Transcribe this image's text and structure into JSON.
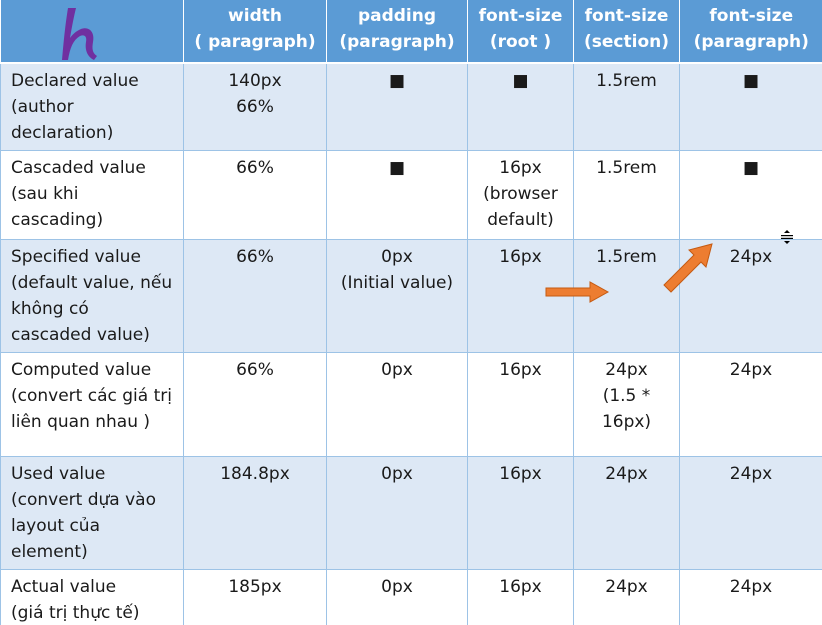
{
  "header": {
    "col1": "width\n( paragraph)",
    "col2": "padding\n(paragraph)",
    "col3": "font-size\n(root )",
    "col4": "font-size\n(section)",
    "col5": "font-size\n(paragraph)"
  },
  "logo": {
    "icon": "h-logo-icon",
    "color": "#7030a0"
  },
  "rows": [
    {
      "label": "Declared value\n(author\ndeclaration)",
      "c1": "140px\n66%",
      "c2": "■",
      "c3": "■",
      "c4": "1.5rem",
      "c5": "■"
    },
    {
      "label": "Cascaded value\n(sau khi\ncascading)",
      "c1": "66%",
      "c2": "■",
      "c3": "16px\n(browser\ndefault)",
      "c4": "1.5rem",
      "c5": "■"
    },
    {
      "label": "Specified value\n(default value, nếu\nkhông có\ncascaded value)",
      "c1": "66%",
      "c2": "0px\n(Initial value)",
      "c3": "16px",
      "c4": "1.5rem",
      "c5": "24px"
    },
    {
      "label": "Computed value\n(convert các giá trị\nliên quan nhau )",
      "c1": "66%",
      "c2": "0px",
      "c3": "16px",
      "c4": "24px\n(1.5 *\n16px)",
      "c5": "24px"
    },
    {
      "label": "Used value\n(convert dựa vào\nlayout của\nelement)",
      "c1": "184.8px",
      "c2": "0px",
      "c3": "16px",
      "c4": "24px",
      "c5": "24px"
    },
    {
      "label": "Actual value\n(giá trị thực tế)",
      "c1": "185px",
      "c2": "0px",
      "c3": "16px",
      "c4": "24px",
      "c5": "24px"
    }
  ],
  "colors": {
    "header_bg": "#5b9bd5",
    "shaded_row": "#dde8f5",
    "arrow": "#ed7d31"
  },
  "icons": [
    "h-logo-icon",
    "right-arrow-icon",
    "diagonal-arrow-icon",
    "resize-cursor-icon"
  ]
}
